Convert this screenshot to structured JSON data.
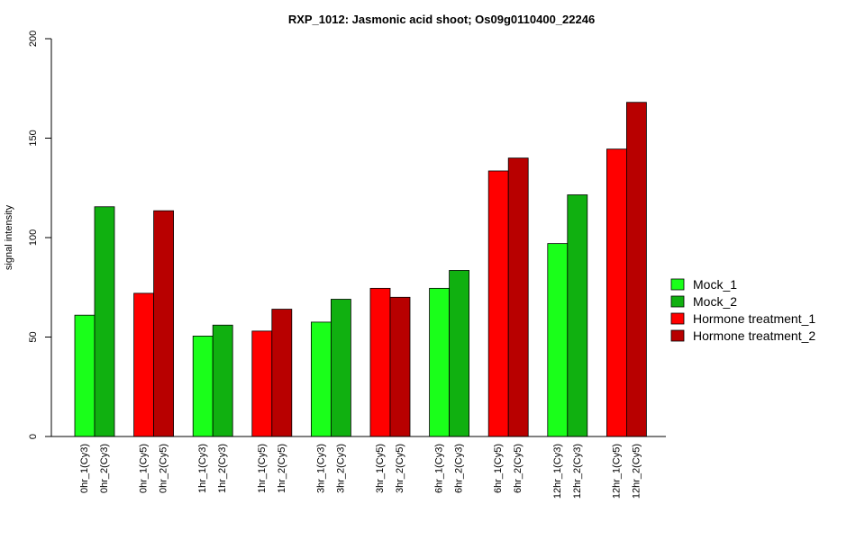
{
  "chart_data": {
    "type": "bar",
    "title": "RXP_1012: Jasmonic acid shoot; Os09g0110400_22246",
    "xlabel": "",
    "ylabel": "signal intensity",
    "ylim": [
      0,
      200
    ],
    "yticks": [
      0,
      50,
      100,
      150,
      200
    ],
    "grid": false,
    "legend_position": "right",
    "legend": [
      {
        "name": "Mock_1",
        "color": "#1AFF1A"
      },
      {
        "name": "Mock_2",
        "color": "#10B010"
      },
      {
        "name": "Hormone treatment_1",
        "color": "#FF0000"
      },
      {
        "name": "Hormone treatment_2",
        "color": "#B80000"
      }
    ],
    "groups": [
      {
        "bars": [
          {
            "label": "0hr_1(Cy3)",
            "value": 61,
            "series": 0
          },
          {
            "label": "0hr_2(Cy3)",
            "value": 115.5,
            "series": 1
          }
        ]
      },
      {
        "bars": [
          {
            "label": "0hr_1(Cy5)",
            "value": 72,
            "series": 2
          },
          {
            "label": "0hr_2(Cy5)",
            "value": 113.5,
            "series": 3
          }
        ]
      },
      {
        "bars": [
          {
            "label": "1hr_1(Cy3)",
            "value": 50.5,
            "series": 0
          },
          {
            "label": "1hr_2(Cy3)",
            "value": 56,
            "series": 1
          }
        ]
      },
      {
        "bars": [
          {
            "label": "1hr_1(Cy5)",
            "value": 53,
            "series": 2
          },
          {
            "label": "1hr_2(Cy5)",
            "value": 64,
            "series": 3
          }
        ]
      },
      {
        "bars": [
          {
            "label": "3hr_1(Cy3)",
            "value": 57.5,
            "series": 0
          },
          {
            "label": "3hr_2(Cy3)",
            "value": 69,
            "series": 1
          }
        ]
      },
      {
        "bars": [
          {
            "label": "3hr_1(Cy5)",
            "value": 74.5,
            "series": 2
          },
          {
            "label": "3hr_2(Cy5)",
            "value": 70,
            "series": 3
          }
        ]
      },
      {
        "bars": [
          {
            "label": "6hr_1(Cy3)",
            "value": 74.5,
            "series": 0
          },
          {
            "label": "6hr_2(Cy3)",
            "value": 83.5,
            "series": 1
          }
        ]
      },
      {
        "bars": [
          {
            "label": "6hr_1(Cy5)",
            "value": 133.5,
            "series": 2
          },
          {
            "label": "6hr_2(Cy5)",
            "value": 140,
            "series": 3
          }
        ]
      },
      {
        "bars": [
          {
            "label": "12hr_1(Cy3)",
            "value": 97,
            "series": 0
          },
          {
            "label": "12hr_2(Cy3)",
            "value": 121.5,
            "series": 1
          }
        ]
      },
      {
        "bars": [
          {
            "label": "12hr_1(Cy5)",
            "value": 144.5,
            "series": 2
          },
          {
            "label": "12hr_2(Cy5)",
            "value": 168,
            "series": 3
          }
        ]
      }
    ]
  }
}
